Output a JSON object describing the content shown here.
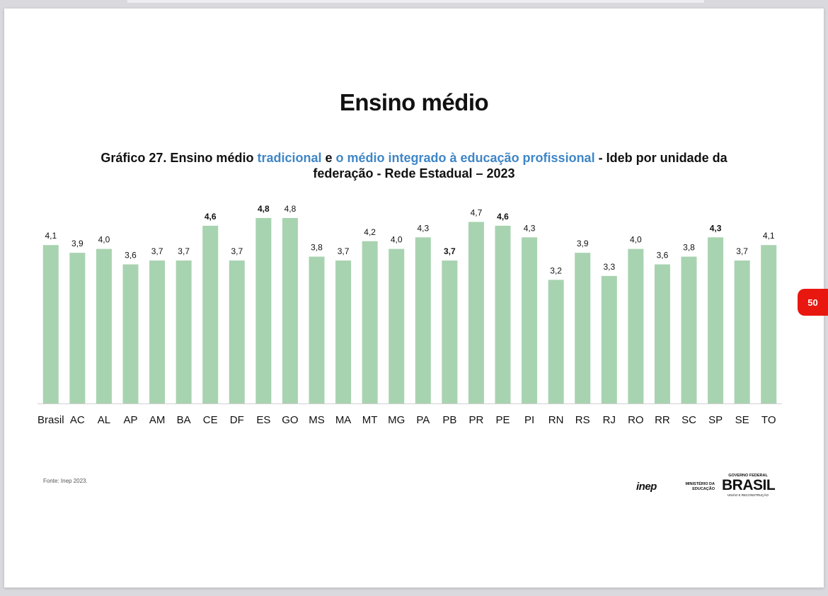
{
  "page": {
    "title": "Ensino médio",
    "subtitle": {
      "part1": "Gráfico 27. Ensino médio ",
      "highlight1": "tradicional",
      "part2": " e ",
      "highlight2": "o médio integrado à educação profissional",
      "part3": " - Ideb por unidade da federação - Rede Estadual – 2023"
    },
    "source": "Fonte: Inep 2023.",
    "page_number": "50",
    "logos": {
      "inep": "inep",
      "mec": "MINISTÉRIO DA EDUCAÇÃO",
      "gov_top": "GOVERNO FEDERAL",
      "gov_main": "BRASIL",
      "gov_bottom": "UNIÃO E RECONSTRUÇÃO"
    }
  },
  "chart_data": {
    "type": "bar",
    "categories": [
      "Brasil",
      "AC",
      "AL",
      "AP",
      "AM",
      "BA",
      "CE",
      "DF",
      "ES",
      "GO",
      "MS",
      "MA",
      "MT",
      "MG",
      "PA",
      "PB",
      "PR",
      "PE",
      "PI",
      "RN",
      "RS",
      "RJ",
      "RO",
      "RR",
      "SC",
      "SP",
      "SE",
      "TO"
    ],
    "values": [
      4.1,
      3.9,
      4.0,
      3.6,
      3.7,
      3.7,
      4.6,
      3.7,
      4.8,
      4.8,
      3.8,
      3.7,
      4.2,
      4.0,
      4.3,
      3.7,
      4.7,
      4.6,
      4.3,
      3.2,
      3.9,
      3.3,
      4.0,
      3.6,
      3.8,
      4.3,
      3.7,
      4.1
    ],
    "data_labels": [
      "4,1",
      "3,9",
      "4,0",
      "3,6",
      "3,7",
      "3,7",
      "4,6",
      "3,7",
      "4,8",
      "4,8",
      "3,8",
      "3,7",
      "4,2",
      "4,0",
      "4,3",
      "3,7",
      "4,7",
      "4,6",
      "4,3",
      "3,2",
      "3,9",
      "3,3",
      "4,0",
      "3,6",
      "3,8",
      "4,3",
      "3,7",
      "4,1"
    ],
    "bold_labels": [
      "CE",
      "ES",
      "PB",
      "PE",
      "SP"
    ],
    "ylim": [
      0,
      4.8
    ],
    "bar_color": "#a8d3b0",
    "grid": false,
    "legend": "none"
  }
}
